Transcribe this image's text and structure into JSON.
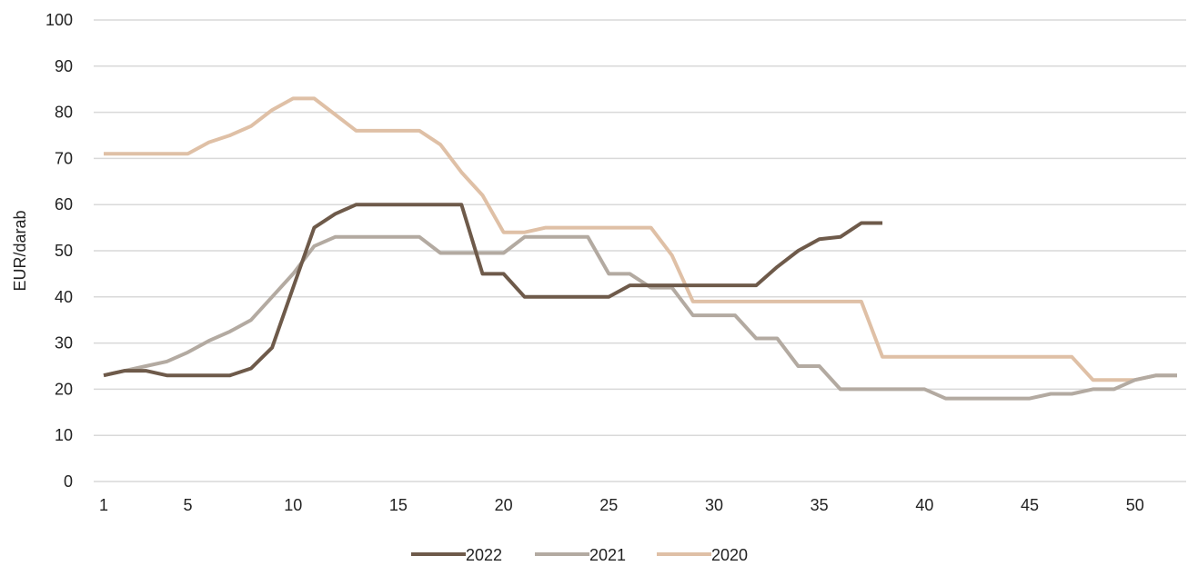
{
  "chart_data": {
    "type": "line",
    "title": "",
    "xlabel": "",
    "ylabel": "EUR/darab",
    "xlim": [
      1,
      52
    ],
    "ylim": [
      0,
      100
    ],
    "x_ticks": [
      1,
      5,
      10,
      15,
      20,
      25,
      30,
      35,
      40,
      45,
      50
    ],
    "y_ticks": [
      0,
      10,
      20,
      30,
      40,
      50,
      60,
      70,
      80,
      90,
      100
    ],
    "grid": true,
    "legend_position": "bottom",
    "series": [
      {
        "name": "2022",
        "color": "#6e5a4a",
        "x": [
          1,
          2,
          3,
          4,
          5,
          6,
          7,
          8,
          9,
          10,
          11,
          12,
          13,
          14,
          15,
          16,
          17,
          18,
          19,
          20,
          21,
          22,
          23,
          24,
          25,
          26,
          27,
          28,
          29,
          30,
          31,
          32,
          33,
          34,
          35,
          36,
          37,
          38
        ],
        "values": [
          23,
          24,
          24,
          23,
          23,
          23,
          23,
          24.5,
          29,
          42,
          55,
          58,
          60,
          60,
          60,
          60,
          60,
          60,
          45,
          45,
          40,
          40,
          40,
          40,
          40,
          42.5,
          42.5,
          42.5,
          42.5,
          42.5,
          42.5,
          42.5,
          46.5,
          50,
          52.5,
          53,
          56,
          56
        ]
      },
      {
        "name": "2021",
        "color": "#b3aaa1",
        "x": [
          1,
          2,
          3,
          4,
          5,
          6,
          7,
          8,
          9,
          10,
          11,
          12,
          13,
          14,
          15,
          16,
          17,
          18,
          19,
          20,
          21,
          22,
          23,
          24,
          25,
          26,
          27,
          28,
          29,
          30,
          31,
          32,
          33,
          34,
          35,
          36,
          37,
          38,
          39,
          40,
          41,
          42,
          43,
          44,
          45,
          46,
          47,
          48,
          49,
          50,
          51,
          52
        ],
        "values": [
          23,
          24,
          25,
          26,
          28,
          30.5,
          32.5,
          35,
          40,
          45,
          51,
          53,
          53,
          53,
          53,
          53,
          49.5,
          49.5,
          49.5,
          49.5,
          53,
          53,
          53,
          53,
          45,
          45,
          42,
          42,
          36,
          36,
          36,
          31,
          31,
          25,
          25,
          20,
          20,
          20,
          20,
          20,
          18,
          18,
          18,
          18,
          18,
          19,
          19,
          20,
          20,
          22,
          23,
          23
        ]
      },
      {
        "name": "2020",
        "color": "#dfc0a6",
        "x": [
          1,
          2,
          3,
          4,
          5,
          6,
          7,
          8,
          9,
          10,
          11,
          12,
          13,
          14,
          15,
          16,
          17,
          18,
          19,
          20,
          21,
          22,
          23,
          24,
          25,
          26,
          27,
          28,
          29,
          30,
          31,
          32,
          33,
          34,
          35,
          36,
          37,
          38,
          39,
          40,
          41,
          42,
          43,
          44,
          45,
          46,
          47,
          48,
          49,
          50,
          51,
          52
        ],
        "values": [
          71,
          71,
          71,
          71,
          71,
          73.5,
          75,
          77,
          80.5,
          83,
          83,
          79.5,
          76,
          76,
          76,
          76,
          73,
          67,
          62,
          54,
          54,
          55,
          55,
          55,
          55,
          55,
          55,
          49,
          39,
          39,
          39,
          39,
          39,
          39,
          39,
          39,
          39,
          27,
          27,
          27,
          27,
          27,
          27,
          27,
          27,
          27,
          27,
          22,
          22,
          22,
          23,
          23
        ]
      }
    ]
  }
}
